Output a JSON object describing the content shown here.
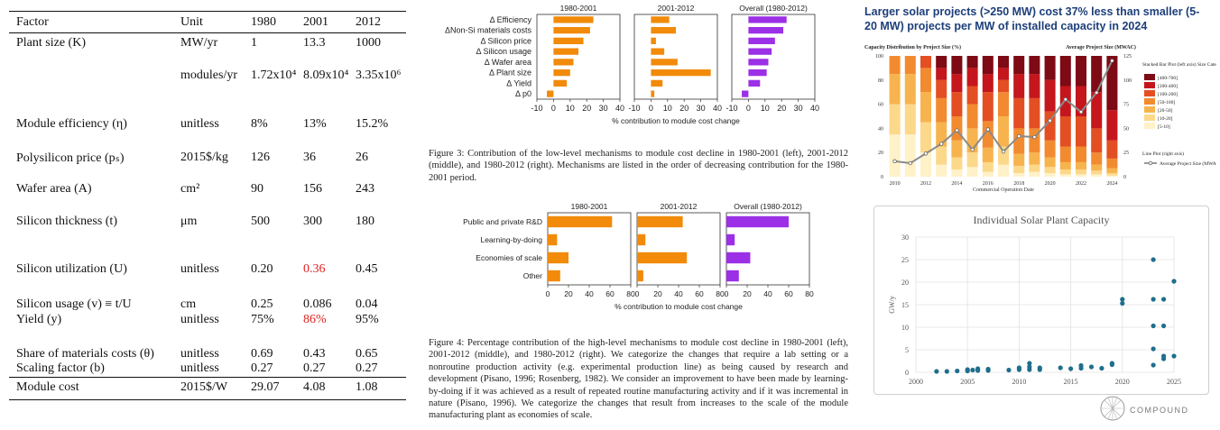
{
  "table": {
    "headers": [
      "Factor",
      "Unit",
      "1980",
      "2001",
      "2012"
    ],
    "rows": [
      {
        "factor": "Plant size (K)",
        "unit": "MW/yr",
        "v1980": "1",
        "v2001": "13.3",
        "v2012": "1000"
      },
      {
        "factor": "",
        "unit": "modules/yr",
        "v1980": "1.72x10⁴",
        "v2001": "8.09x10⁴",
        "v2012": "3.35x10⁶"
      },
      {
        "factor": "Module efficiency (η)",
        "unit": "unitless",
        "v1980": "8%",
        "v2001": "13%",
        "v2012": "15.2%"
      },
      {
        "factor": "Polysilicon price (pₛ)",
        "unit": "2015$/kg",
        "v1980": "126",
        "v2001": "36",
        "v2012": "26"
      },
      {
        "factor": "Wafer area (A)",
        "unit": "cm²",
        "v1980": "90",
        "v2001": "156",
        "v2012": "243"
      },
      {
        "factor": "Silicon thickness (t)",
        "unit": "μm",
        "v1980": "500",
        "v2001": "300",
        "v2012": "180"
      },
      {
        "factor": "Silicon utilization (U)",
        "unit": "unitless",
        "v1980": "0.20",
        "v2001": "0.36",
        "v2012": "0.45"
      },
      {
        "factor": "Silicon usage (v) ≡ t/U",
        "unit": "cm",
        "v1980": "0.25",
        "v2001": "0.086",
        "v2012": "0.04"
      },
      {
        "factor": "Yield (y)",
        "unit": "unitless",
        "v1980": "75%",
        "v2001": "86%",
        "v2012": "95%"
      },
      {
        "factor": "Share of materials costs (θ)",
        "unit": "unitless",
        "v1980": "0.69",
        "v2001": "0.43",
        "v2012": "0.65"
      },
      {
        "factor": "Scaling factor (b)",
        "unit": "unitless",
        "v1980": "0.27",
        "v2001": "0.27",
        "v2012": "0.27"
      },
      {
        "factor": "Module cost",
        "unit": "2015$/W",
        "v1980": "29.07",
        "v2001": "4.08",
        "v2012": "1.08"
      }
    ]
  },
  "fig3": {
    "caption": "Figure 3: Contribution of the low-level mechanisms to module cost decline in 1980-2001 (left), 2001-2012 (middle), and 1980-2012 (right). Mechanisms are listed in the order of decreasing contribution for the 1980-2001 period.",
    "xlabel": "% contribution to module cost change"
  },
  "fig4": {
    "caption": "Figure 4: Percentage contribution of the high-level mechanisms to module cost decline in 1980-2001 (left), 2001-2012 (middle), and 1980-2012 (right). We categorize the changes that require a lab setting or a nonroutine production activity (e.g. experimental production line) as being caused by research and development (Pisano, 1996; Rosenberg, 1982). We consider an improvement to have been made by learning-by-doing if it was achieved as a result of repeated routine manufacturing activity and if it was incremental in nature (Pisano, 1996). We categorize the changes that result from increases to the scale of the module manufacturing plant as economies of scale.",
    "xlabel": "% contribution to module cost change"
  },
  "solar": {
    "title": "Larger solar projects (>250 MW) cost 37% less than smaller (5-20 MW) projects per MW of installed capacity in 2024",
    "left_title": "Capacity Distribution by Project Size (%)",
    "right_title": "Average Project Size (MWAC)",
    "xlabel": "Commercial Operation Date",
    "legend_title": "Stacked Bar Plot (left axis) Size Category (MWAC)",
    "line_legend_title": "Line Plot (right axis)",
    "line_legend_label": "Average Project Size (MWAC)"
  },
  "indiv": {
    "title": "Individual Solar Plant Capacity",
    "ylabel": "GW/y",
    "logo": "COMPOUND"
  },
  "chart_data": [
    {
      "type": "bar",
      "orientation": "horizontal",
      "id": "fig3",
      "categories": [
        "Δ Efficiency",
        "ΔNon-Si materials costs",
        "Δ Silicon price",
        "Δ Silicon usage",
        "Δ Wafer area",
        "Δ Plant size",
        "Δ Yield",
        "Δ p0"
      ],
      "panels": [
        {
          "title": "1980-2001",
          "color": "#f28a0a",
          "values": [
            24,
            22,
            18,
            15,
            12,
            10,
            8,
            -4
          ]
        },
        {
          "title": "2001-2012",
          "color": "#f28a0a",
          "values": [
            11,
            15,
            3,
            8,
            16,
            36,
            7,
            2
          ]
        },
        {
          "title": "Overall (1980-2012)",
          "color": "#9b30e6",
          "values": [
            23,
            21,
            16,
            14,
            12,
            11,
            7,
            -4
          ]
        }
      ],
      "xlim": [
        -10,
        40
      ],
      "xticks": [
        -10,
        0,
        10,
        20,
        30,
        40
      ],
      "xlabel": "% contribution to module cost change"
    },
    {
      "type": "bar",
      "orientation": "horizontal",
      "id": "fig4",
      "categories": [
        "Public and private R&D",
        "Learning-by-doing",
        "Economies of scale",
        "Other"
      ],
      "panels": [
        {
          "title": "1980-2001",
          "color": "#f28a0a",
          "values": [
            62,
            9,
            20,
            12
          ]
        },
        {
          "title": "2001-2012",
          "color": "#f28a0a",
          "values": [
            44,
            8,
            48,
            6
          ]
        },
        {
          "title": "Overall (1980-2012)",
          "color": "#9b30e6",
          "values": [
            60,
            8,
            23,
            12
          ]
        }
      ],
      "xlim": [
        0,
        80
      ],
      "xticks": [
        0,
        20,
        40,
        60,
        80
      ],
      "xlabel": "% contribution to module cost change"
    },
    {
      "type": "bar",
      "stacked": true,
      "id": "solar",
      "title": "Larger solar projects (>250 MW) cost 37% less than smaller (5-20 MW) projects per MW of installed capacity in 2024",
      "x": [
        2010,
        2011,
        2012,
        2013,
        2014,
        2015,
        2016,
        2017,
        2018,
        2019,
        2020,
        2021,
        2022,
        2023,
        2024
      ],
      "xticks": [
        "2010",
        "2012",
        "2014",
        "2016",
        "2018",
        "2020",
        "2022",
        "2024"
      ],
      "ylim_left": [
        0,
        100
      ],
      "yticks_left": [
        "0",
        "20",
        "40",
        "60",
        "80",
        "100"
      ],
      "ylim_right": [
        0,
        125
      ],
      "yticks_right": [
        "0",
        "25",
        "50",
        "75",
        "100",
        "125"
      ],
      "series": [
        {
          "name": "[5-10]",
          "color": "#fff1c8",
          "values": [
            35,
            35,
            20,
            10,
            6,
            8,
            4,
            10,
            3,
            4,
            3,
            2,
            2,
            2,
            1
          ]
        },
        {
          "name": "[10-20]",
          "color": "#fcd88a",
          "values": [
            25,
            25,
            25,
            15,
            10,
            12,
            8,
            15,
            6,
            6,
            5,
            4,
            4,
            3,
            2
          ]
        },
        {
          "name": "[20-50]",
          "color": "#f7b44e",
          "values": [
            25,
            25,
            25,
            20,
            14,
            20,
            12,
            25,
            10,
            10,
            8,
            6,
            6,
            5,
            4
          ]
        },
        {
          "name": "[50-100]",
          "color": "#f28b30",
          "values": [
            15,
            15,
            20,
            20,
            20,
            20,
            22,
            20,
            21,
            20,
            14,
            13,
            13,
            10,
            8
          ]
        },
        {
          "name": "[100-200]",
          "color": "#e34f22",
          "values": [
            0,
            0,
            10,
            15,
            20,
            15,
            24,
            10,
            25,
            25,
            24,
            25,
            25,
            20,
            15
          ]
        },
        {
          "name": "[200-400]",
          "color": "#c4161c",
          "values": [
            0,
            0,
            0,
            10,
            15,
            15,
            15,
            10,
            20,
            20,
            26,
            25,
            25,
            30,
            25
          ]
        },
        {
          "name": "[400-700]",
          "color": "#7d0a14",
          "values": [
            0,
            0,
            0,
            10,
            15,
            10,
            15,
            10,
            15,
            15,
            20,
            25,
            25,
            30,
            45
          ]
        }
      ],
      "line": {
        "name": "Average Project Size (MWAC)",
        "axis": "right",
        "color": "#8a8a8a",
        "values": [
          16,
          14,
          24,
          34,
          48,
          28,
          49,
          26,
          42,
          41,
          58,
          80,
          67,
          87,
          120
        ]
      },
      "xlabel": "Commercial Operation Date"
    },
    {
      "type": "scatter",
      "id": "indiv",
      "title": "Individual Solar Plant Capacity",
      "ylabel": "GW/y",
      "xlim": [
        2000,
        2025
      ],
      "xticks": [
        "2000",
        "2005",
        "2010",
        "2015",
        "2020",
        "2025"
      ],
      "ylim": [
        0,
        30
      ],
      "yticks": [
        "0",
        "5",
        "10",
        "15",
        "20",
        "25",
        "30"
      ],
      "color": "#1f6e8c",
      "points": [
        [
          2002,
          0.2
        ],
        [
          2003,
          0.2
        ],
        [
          2004,
          0.3
        ],
        [
          2005,
          0.3
        ],
        [
          2005,
          0.6
        ],
        [
          2005.5,
          0.5
        ],
        [
          2006,
          0.4
        ],
        [
          2006,
          0.8
        ],
        [
          2007,
          0.4
        ],
        [
          2007,
          0.7
        ],
        [
          2009,
          0.5
        ],
        [
          2010,
          0.6
        ],
        [
          2010,
          1.0
        ],
        [
          2011,
          0.6
        ],
        [
          2011,
          1.2
        ],
        [
          2011,
          2.0
        ],
        [
          2012,
          0.6
        ],
        [
          2012,
          1.0
        ],
        [
          2014,
          1.0
        ],
        [
          2015,
          0.8
        ],
        [
          2016,
          0.9
        ],
        [
          2016,
          1.5
        ],
        [
          2017,
          1.2
        ],
        [
          2018,
          0.9
        ],
        [
          2019,
          1.7
        ],
        [
          2019,
          2.0
        ],
        [
          2020,
          15.3
        ],
        [
          2020,
          16.2
        ],
        [
          2023,
          25.0
        ],
        [
          2023,
          16.2
        ],
        [
          2023,
          10.3
        ],
        [
          2023,
          5.2
        ],
        [
          2023,
          1.6
        ],
        [
          2024,
          16.2
        ],
        [
          2024,
          10.3
        ],
        [
          2024,
          3.6
        ],
        [
          2024,
          3.0
        ],
        [
          2025,
          20.2
        ],
        [
          2025,
          3.6
        ]
      ]
    }
  ]
}
